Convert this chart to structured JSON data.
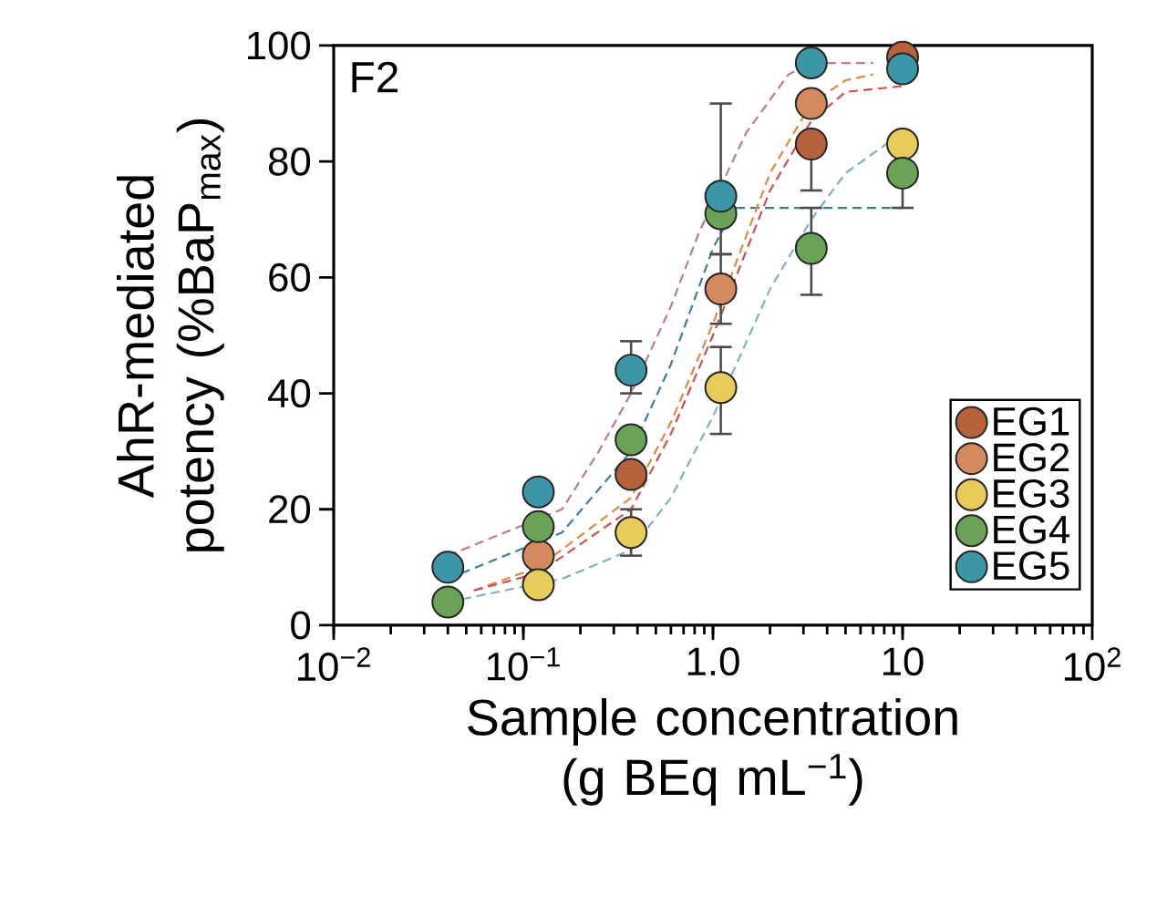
{
  "chart_data": {
    "type": "scatter",
    "xlabel": "Sample concentration (g BEq mL$^{−1}$)",
    "ylabel": "AhR-mediated potency (%BaP$_{max}$)",
    "annotations": [
      "F2"
    ],
    "log": "x",
    "xlim": [
      0.01,
      100
    ],
    "ylim": [
      0,
      100
    ],
    "xticks": [
      {
        "value": 0.01,
        "label": "10$^{−2}$"
      },
      {
        "value": 0.1,
        "label": "10$^{−1}$"
      },
      {
        "value": 1,
        "label": "1.0"
      },
      10,
      {
        "value": 100,
        "label": "10$^{2}$"
      }
    ],
    "yticks": [
      0,
      20,
      40,
      60,
      80,
      100
    ],
    "legend": "bottom right",
    "grid": false,
    "x": [
      0.04,
      0.12,
      0.37,
      1.1,
      3.3,
      10
    ],
    "series": [
      {
        "name": "EG1",
        "marker": "circle",
        "color": "#b5623d",
        "values": [
          null,
          null,
          26,
          null,
          83,
          98
        ],
        "errors": [
          null,
          null,
          null,
          null,
          [
            75,
            83
          ],
          null
        ]
      },
      {
        "name": "EG2",
        "marker": "circle",
        "color": "#d4895e",
        "values": [
          null,
          12,
          null,
          58,
          90,
          null
        ],
        "errors": [
          null,
          null,
          null,
          [
            52,
            64
          ],
          null,
          null
        ]
      },
      {
        "name": "EG3",
        "marker": "circle",
        "color": "#e8cb5a",
        "values": [
          null,
          7,
          16,
          41,
          null,
          83
        ],
        "errors": [
          null,
          null,
          [
            12,
            20
          ],
          [
            33,
            48
          ],
          null,
          null
        ]
      },
      {
        "name": "EG4",
        "marker": "circle",
        "color": "#6aa257",
        "values": [
          4,
          17,
          32,
          71,
          65,
          78
        ],
        "errors": [
          null,
          null,
          null,
          null,
          [
            57,
            72
          ],
          [
            72,
            78
          ]
        ]
      },
      {
        "name": "EG5",
        "marker": "circle",
        "color": "#3c96a8",
        "values": [
          10,
          23,
          44,
          74,
          97,
          96
        ],
        "errors": [
          null,
          null,
          [
            40,
            49
          ],
          [
            64,
            90
          ],
          null,
          null
        ]
      },
      {
        "type": "line",
        "line_style": "dashed",
        "marker": "none",
        "color": "#c07898",
        "x": [
          0.04,
          0.16,
          0.25,
          0.37,
          0.6,
          0.85,
          1.5,
          2.5,
          3.3,
          5,
          7
        ],
        "values": [
          12,
          20,
          30,
          40,
          55,
          68,
          85,
          95,
          97,
          97,
          97
        ]
      },
      {
        "type": "line",
        "line_style": "dashed",
        "marker": "none",
        "color": "#3a7ea0",
        "x": [
          0.04,
          0.16,
          0.37,
          0.6,
          1.0,
          1.3,
          3,
          10
        ],
        "values": [
          8,
          16,
          30,
          45,
          65,
          72,
          72,
          72
        ]
      },
      {
        "type": "line",
        "line_style": "dashed",
        "marker": "none",
        "color": "#e08a40",
        "x": [
          0.055,
          0.12,
          0.37,
          0.6,
          1.0,
          2,
          3.3,
          5,
          7
        ],
        "values": [
          6,
          10,
          22,
          35,
          52,
          78,
          90,
          94,
          95
        ]
      },
      {
        "type": "line",
        "line_style": "dashed",
        "marker": "none",
        "color": "#d05050",
        "x": [
          0.055,
          0.12,
          0.37,
          0.6,
          1.0,
          2,
          3.3,
          5,
          10
        ],
        "values": [
          6,
          9,
          20,
          33,
          50,
          75,
          87,
          92,
          93
        ]
      },
      {
        "type": "line",
        "line_style": "dashed",
        "marker": "none",
        "color": "#80b0c8",
        "x": [
          0.04,
          0.16,
          0.37,
          0.6,
          1.0,
          2,
          3.3,
          5,
          10
        ],
        "values": [
          4,
          8,
          13,
          22,
          36,
          58,
          70,
          78,
          85
        ]
      }
    ]
  }
}
